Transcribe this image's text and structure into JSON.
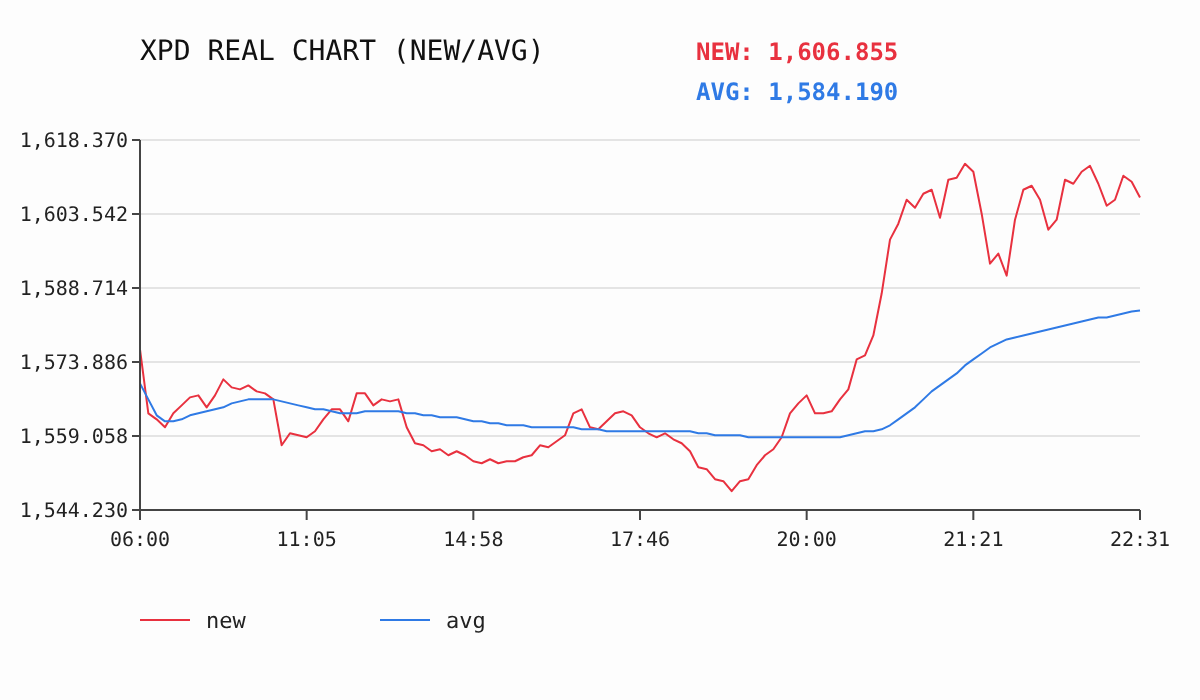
{
  "chart_data": {
    "type": "line",
    "title": "XPD REAL CHART (NEW/AVG)",
    "annotations": [
      "NEW: 1,606.855",
      "AVG: 1,584.190"
    ],
    "categories": [
      "06:00",
      null,
      null,
      null,
      null,
      null,
      null,
      null,
      null,
      null,
      null,
      null,
      null,
      null,
      null,
      null,
      null,
      null,
      null,
      null,
      "11:05",
      null,
      null,
      null,
      null,
      null,
      null,
      null,
      null,
      null,
      null,
      null,
      null,
      null,
      null,
      null,
      null,
      null,
      null,
      null,
      "14:58",
      null,
      null,
      null,
      null,
      null,
      null,
      null,
      null,
      null,
      null,
      null,
      null,
      null,
      null,
      null,
      null,
      null,
      null,
      null,
      "17:46",
      null,
      null,
      null,
      null,
      null,
      null,
      null,
      null,
      null,
      null,
      null,
      null,
      null,
      null,
      null,
      null,
      null,
      null,
      null,
      "20:00",
      null,
      null,
      null,
      null,
      null,
      null,
      null,
      null,
      null,
      null,
      null,
      null,
      null,
      null,
      null,
      null,
      null,
      null,
      null,
      "21:21",
      null,
      null,
      null,
      null,
      null,
      null,
      null,
      null,
      null,
      null,
      null,
      null,
      null,
      null,
      null,
      null,
      null,
      null,
      null,
      "22:31"
    ],
    "ylim": [
      1544.23,
      1618.37
    ],
    "yticks": [
      {
        "value": 1544.23,
        "label": "1,544.230"
      },
      {
        "value": 1559.058,
        "label": "1,559.058"
      },
      {
        "value": 1573.886,
        "label": "1,573.886"
      },
      {
        "value": 1588.714,
        "label": "1,588.714"
      },
      {
        "value": 1603.542,
        "label": "1,603.542"
      },
      {
        "value": 1618.37,
        "label": "1,618.370"
      }
    ],
    "grid": "y",
    "legend": "bottom",
    "marker": "none",
    "line_style": "solid",
    "series": [
      {
        "name": "new",
        "color": "#e8313f",
        "values": [
          1576.4,
          1563.6,
          1562.4,
          1560.8,
          1563.6,
          1565.2,
          1566.8,
          1567.2,
          1564.8,
          1567.2,
          1570.4,
          1568.8,
          1568.4,
          1569.2,
          1568.0,
          1567.6,
          1566.4,
          1557.2,
          1559.6,
          1559.2,
          1558.8,
          1560.0,
          1562.4,
          1564.4,
          1564.4,
          1562.0,
          1567.6,
          1567.6,
          1565.2,
          1566.4,
          1566.0,
          1566.4,
          1560.8,
          1557.6,
          1557.2,
          1556.0,
          1556.4,
          1555.2,
          1556.0,
          1555.2,
          1554.0,
          1553.6,
          1554.4,
          1553.6,
          1554.0,
          1554.0,
          1554.8,
          1555.2,
          1557.2,
          1556.8,
          1558.0,
          1559.2,
          1563.6,
          1564.4,
          1560.8,
          1560.4,
          1562.0,
          1563.6,
          1564.0,
          1563.2,
          1560.8,
          1559.6,
          1558.8,
          1559.6,
          1558.4,
          1557.6,
          1556.0,
          1552.8,
          1552.4,
          1550.4,
          1550.0,
          1548.0,
          1550.0,
          1550.4,
          1553.2,
          1555.2,
          1556.4,
          1558.8,
          1563.6,
          1565.6,
          1567.2,
          1563.6,
          1563.6,
          1564.0,
          1566.4,
          1568.4,
          1574.4,
          1575.2,
          1579.2,
          1587.6,
          1598.4,
          1601.6,
          1606.4,
          1604.8,
          1607.6,
          1608.4,
          1602.8,
          1610.4,
          1610.8,
          1613.6,
          1612.0,
          1603.6,
          1593.6,
          1595.6,
          1591.2,
          1602.4,
          1608.4,
          1609.2,
          1606.4,
          1600.4,
          1602.4,
          1610.4,
          1609.6,
          1612.0,
          1613.2,
          1609.6,
          1605.2,
          1606.4,
          1611.2,
          1610.0,
          1606.855
        ]
      },
      {
        "name": "avg",
        "color": "#2f7ae5",
        "values": [
          1569.6,
          1566.4,
          1563.2,
          1562.0,
          1562.0,
          1562.4,
          1563.2,
          1563.6,
          1564.0,
          1564.4,
          1564.8,
          1565.6,
          1566.0,
          1566.4,
          1566.4,
          1566.4,
          1566.4,
          1566.0,
          1565.6,
          1565.2,
          1564.8,
          1564.4,
          1564.4,
          1564.0,
          1563.6,
          1563.6,
          1563.6,
          1564.0,
          1564.0,
          1564.0,
          1564.0,
          1564.0,
          1563.6,
          1563.6,
          1563.2,
          1563.2,
          1562.8,
          1562.8,
          1562.8,
          1562.4,
          1562.0,
          1562.0,
          1561.6,
          1561.6,
          1561.2,
          1561.2,
          1561.2,
          1560.8,
          1560.8,
          1560.8,
          1560.8,
          1560.8,
          1560.8,
          1560.4,
          1560.4,
          1560.4,
          1560.0,
          1560.0,
          1560.0,
          1560.0,
          1560.0,
          1560.0,
          1560.0,
          1560.0,
          1560.0,
          1560.0,
          1560.0,
          1559.6,
          1559.6,
          1559.2,
          1559.2,
          1559.2,
          1559.2,
          1558.8,
          1558.8,
          1558.8,
          1558.8,
          1558.8,
          1558.8,
          1558.8,
          1558.8,
          1558.8,
          1558.8,
          1558.8,
          1558.8,
          1559.2,
          1559.6,
          1560.0,
          1560.0,
          1560.4,
          1561.2,
          1562.4,
          1563.6,
          1564.8,
          1566.4,
          1568.0,
          1569.2,
          1570.4,
          1571.6,
          1573.2,
          1574.4,
          1575.6,
          1576.8,
          1577.6,
          1578.4,
          1578.8,
          1579.2,
          1579.6,
          1580.0,
          1580.4,
          1580.8,
          1581.2,
          1581.6,
          1582.0,
          1582.4,
          1582.8,
          1582.8,
          1583.2,
          1583.6,
          1584.0,
          1584.19
        ]
      }
    ]
  }
}
